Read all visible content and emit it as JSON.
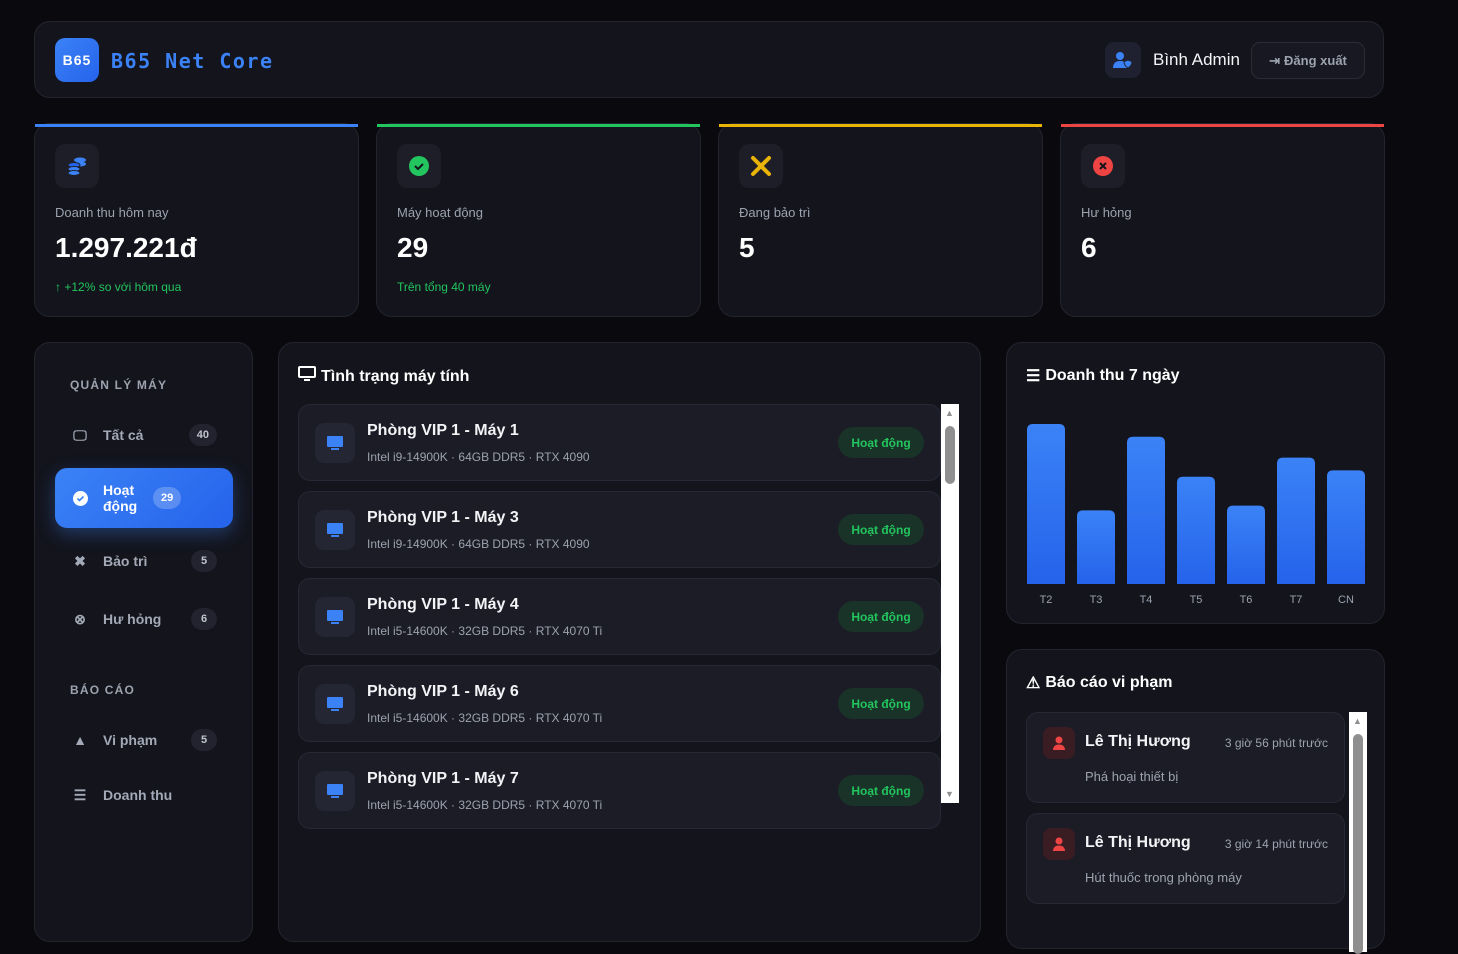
{
  "header": {
    "logo_text": "B65",
    "brand": "B65 Net Core",
    "user_name": "Bình Admin",
    "logout_label": "Đăng xuất"
  },
  "stats": [
    {
      "label": "Doanh thu hôm nay",
      "value": "1.297.221đ",
      "sub": "+12% so với hôm qua",
      "accent": "#3b82f6",
      "icon": "coins-icon"
    },
    {
      "label": "Máy hoạt động",
      "value": "29",
      "sub": "Trên tổng 40 máy",
      "accent": "#22c55e",
      "icon": "check-circle-icon"
    },
    {
      "label": "Đang bảo trì",
      "value": "5",
      "sub": "",
      "accent": "#eab308",
      "icon": "tools-icon"
    },
    {
      "label": "Hư hỏng",
      "value": "6",
      "sub": "",
      "accent": "#ef4444",
      "icon": "x-circle-icon"
    }
  ],
  "sidebar": {
    "section1": "QUẢN LÝ MÁY",
    "items": [
      {
        "label": "Tất cả",
        "count": "40"
      },
      {
        "label": "Hoạt động",
        "count": "29"
      },
      {
        "label": "Bảo trì",
        "count": "5"
      },
      {
        "label": "Hư hỏng",
        "count": "6"
      }
    ],
    "section2": "BÁO CÁO",
    "report_items": [
      {
        "label": "Vi phạm",
        "count": "5"
      },
      {
        "label": "Doanh thu"
      }
    ]
  },
  "machines": {
    "title": "Tình trạng máy tính",
    "items": [
      {
        "name": "Phòng VIP 1 - Máy 1",
        "spec": "Intel i9-14900K · 64GB DDR5 · RTX 4090",
        "status": "Hoạt động"
      },
      {
        "name": "Phòng VIP 1 - Máy 3",
        "spec": "Intel i9-14900K · 64GB DDR5 · RTX 4090",
        "status": "Hoạt động"
      },
      {
        "name": "Phòng VIP 1 - Máy 4",
        "spec": "Intel i5-14600K · 32GB DDR5 · RTX 4070 Ti",
        "status": "Hoạt động"
      },
      {
        "name": "Phòng VIP 1 - Máy 6",
        "spec": "Intel i5-14600K · 32GB DDR5 · RTX 4070 Ti",
        "status": "Hoạt động"
      },
      {
        "name": "Phòng VIP 1 - Máy 7",
        "spec": "Intel i5-14600K · 32GB DDR5 · RTX 4070 Ti",
        "status": "Hoạt động"
      }
    ]
  },
  "chart_data": {
    "type": "bar",
    "title": "Doanh thu 7 ngày",
    "categories": [
      "T2",
      "T3",
      "T4",
      "T5",
      "T6",
      "T7",
      "CN"
    ],
    "values": [
      100,
      46,
      92,
      67,
      49,
      79,
      71
    ],
    "value_scale": "relative percent of max (no axis printed)",
    "bar_color": "#3b82f6",
    "grid": false
  },
  "violations": {
    "title": "Báo cáo vi phạm",
    "items": [
      {
        "name": "Lê Thị Hương",
        "time": "3 giờ 56 phút trước",
        "reason": "Phá hoại thiết bị"
      },
      {
        "name": "Lê Thị Hương",
        "time": "3 giờ 14 phút trước",
        "reason": "Hút thuốc trong phòng máy"
      }
    ]
  }
}
